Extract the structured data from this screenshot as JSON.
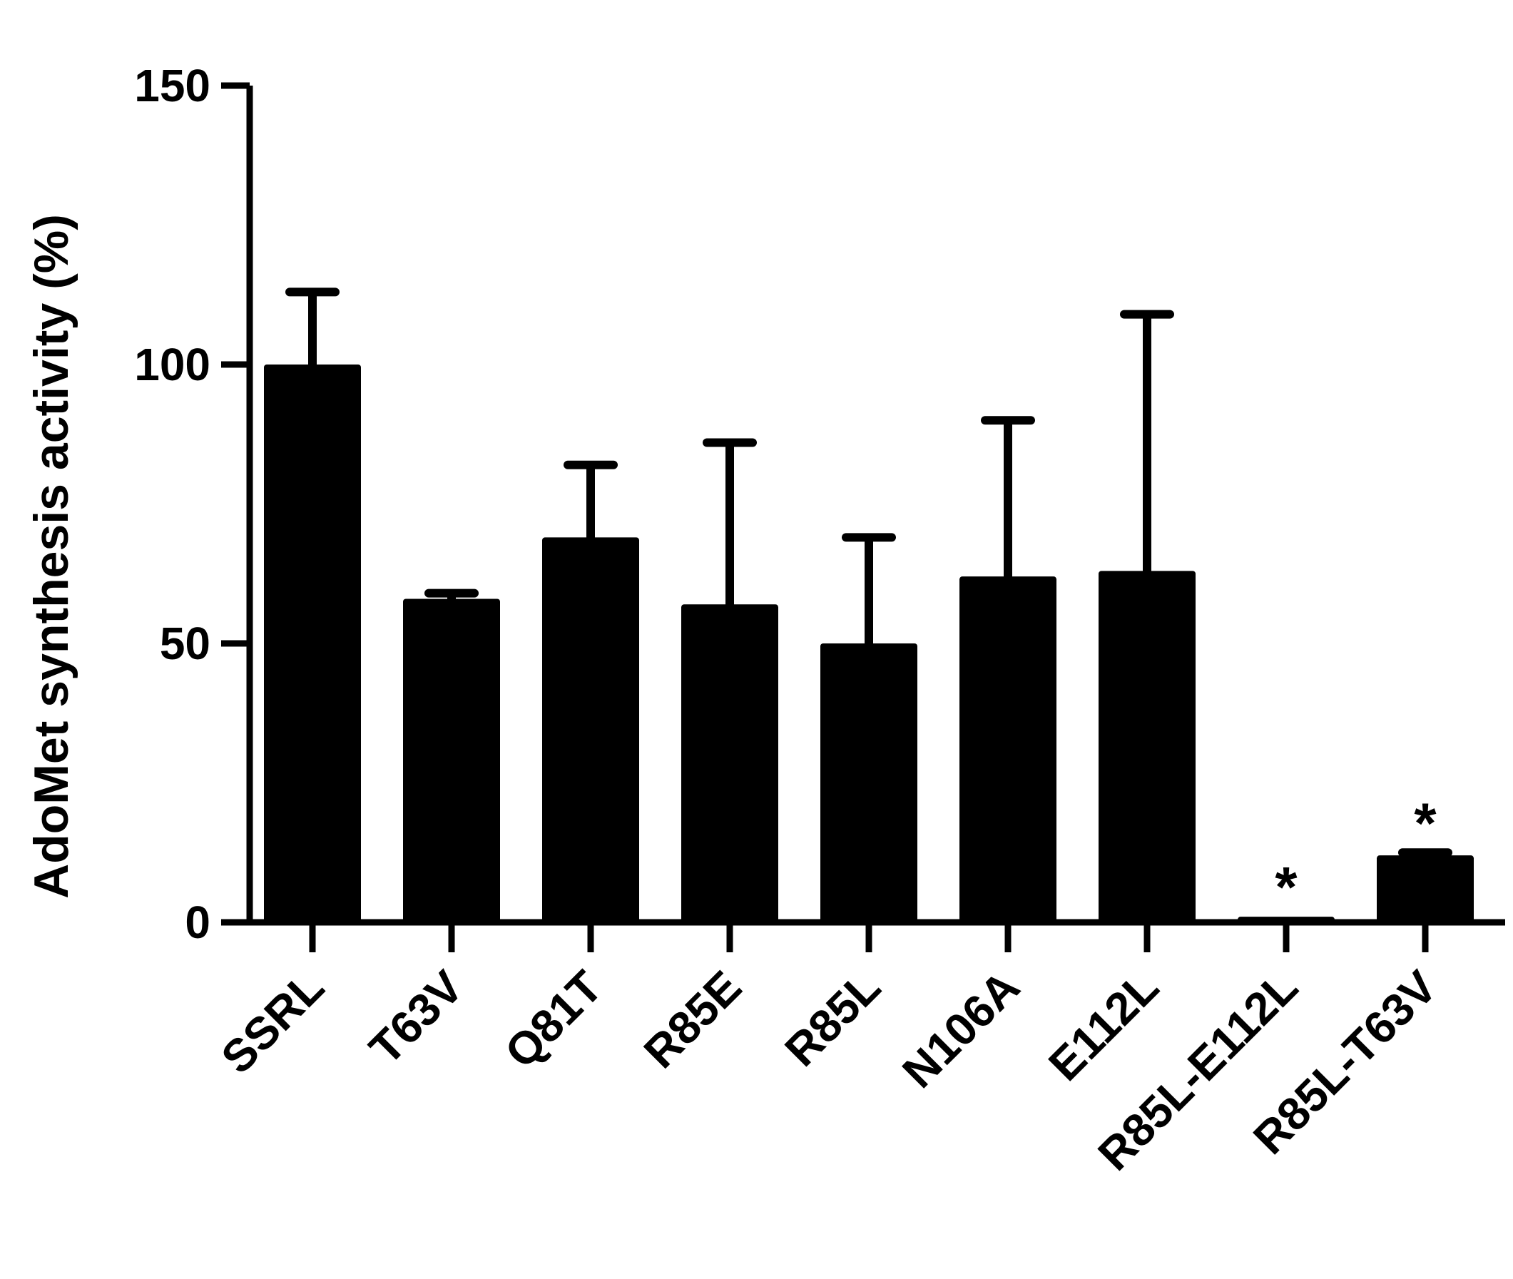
{
  "chart_data": {
    "type": "bar",
    "title": "",
    "xlabel": "",
    "ylabel": "AdoMet synthesis activity (%)",
    "ylim": [
      0,
      150
    ],
    "yticks": [
      0,
      50,
      100,
      150
    ],
    "ytick_labels": [
      "0",
      "50",
      "100",
      "150"
    ],
    "grid": false,
    "legend": "none",
    "bar_color": "#000000",
    "categories": [
      "SSRL",
      "T63V",
      "Q81T",
      "R85E",
      "R85L",
      "N106A",
      "E112L",
      "R85L-E112L",
      "R85L-T63V"
    ],
    "values": [
      100,
      58,
      69,
      57,
      50,
      62,
      63,
      1,
      12
    ],
    "errors": [
      13,
      1,
      13,
      29,
      19,
      28,
      46,
      0,
      0.5
    ],
    "annotations": [
      "",
      "",
      "",
      "",
      "",
      "",
      "",
      "*",
      "*"
    ]
  }
}
